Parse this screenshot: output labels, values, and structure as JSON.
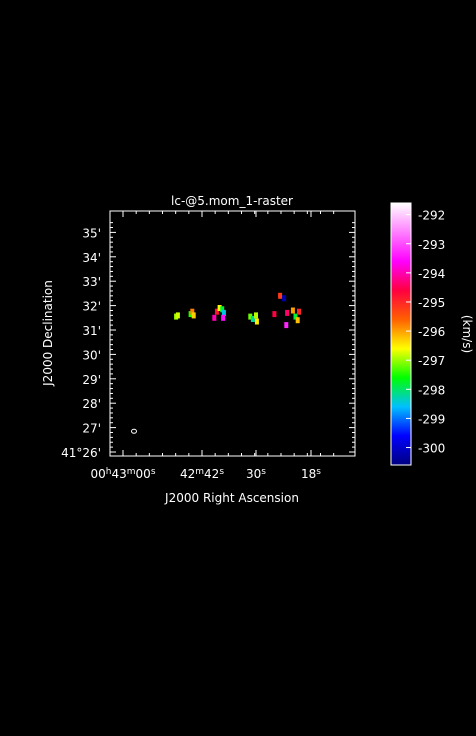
{
  "chart_data": {
    "type": "heatmap",
    "title": "lc-@5.mom_1-raster",
    "xlabel": "J2000 Right Ascension",
    "ylabel": "J2000 Declination",
    "colorbar_label": "(km/s)",
    "x_ticks": [
      {
        "value": "00h43m00s",
        "parts": [
          [
            "00",
            "n"
          ],
          [
            "h",
            "s"
          ],
          [
            "43",
            "n"
          ],
          [
            "m",
            "s"
          ],
          [
            "00",
            "n"
          ],
          [
            "s",
            "s"
          ]
        ]
      },
      {
        "value": "42m42s",
        "parts": [
          [
            "42",
            "n"
          ],
          [
            "m",
            "s"
          ],
          [
            "42",
            "n"
          ],
          [
            "s",
            "s"
          ]
        ]
      },
      {
        "value": "30s",
        "parts": [
          [
            "30",
            "n"
          ],
          [
            "s",
            "s"
          ]
        ]
      },
      {
        "value": "18s",
        "parts": [
          [
            "18",
            "n"
          ],
          [
            "s",
            "s"
          ]
        ]
      }
    ],
    "y_ticks": [
      {
        "value": "35'",
        "dec": 35
      },
      {
        "value": "34'",
        "dec": 34
      },
      {
        "value": "33'",
        "dec": 33
      },
      {
        "value": "32'",
        "dec": 32
      },
      {
        "value": "31'",
        "dec": 31
      },
      {
        "value": "30'",
        "dec": 30
      },
      {
        "value": "29'",
        "dec": 29
      },
      {
        "value": "28'",
        "dec": 28
      },
      {
        "value": "27'",
        "dec": 27
      },
      {
        "value": "41°26'",
        "dec": 26
      }
    ],
    "colorbar_ticks": [
      "-292",
      "-293",
      "-294",
      "-295",
      "-296",
      "-297",
      "-298",
      "-299",
      "-300"
    ],
    "colorbar_range": [
      -300.6,
      -291.6
    ],
    "colormap": [
      "#ffffff",
      "#ff80ff",
      "#ff00ff",
      "#ff0040",
      "#ff6000",
      "#ffff00",
      "#00ff00",
      "#00c0ff",
      "#0000ff",
      "#000080"
    ],
    "beam": {
      "ra_s": 57.5,
      "dec": 26.85
    },
    "emission_clumps": [
      {
        "ra_s": 47.9,
        "dec": 31.55,
        "velocity": -297.0
      },
      {
        "ra_s": 47.5,
        "dec": 31.6,
        "velocity": -296.8
      },
      {
        "ra_s": 44.6,
        "dec": 31.65,
        "velocity": -297.5
      },
      {
        "ra_s": 44.2,
        "dec": 31.75,
        "velocity": -295.8
      },
      {
        "ra_s": 43.9,
        "dec": 31.6,
        "velocity": -296.3
      },
      {
        "ra_s": 39.2,
        "dec": 31.5,
        "velocity": -294.0
      },
      {
        "ra_s": 38.6,
        "dec": 31.75,
        "velocity": -294.8
      },
      {
        "ra_s": 38.0,
        "dec": 31.9,
        "velocity": -296.6
      },
      {
        "ra_s": 37.4,
        "dec": 31.85,
        "velocity": -297.8
      },
      {
        "ra_s": 37.0,
        "dec": 31.7,
        "velocity": -298.5
      },
      {
        "ra_s": 37.2,
        "dec": 31.5,
        "velocity": -293.5
      },
      {
        "ra_s": 31.0,
        "dec": 31.55,
        "velocity": -297.2
      },
      {
        "ra_s": 30.4,
        "dec": 31.45,
        "velocity": -298.2
      },
      {
        "ra_s": 29.7,
        "dec": 31.6,
        "velocity": -296.9
      },
      {
        "ra_s": 29.5,
        "dec": 31.35,
        "velocity": -296.5
      },
      {
        "ra_s": 25.5,
        "dec": 31.65,
        "velocity": -294.6
      },
      {
        "ra_s": 24.2,
        "dec": 32.4,
        "velocity": -295.2
      },
      {
        "ra_s": 23.3,
        "dec": 32.3,
        "velocity": -300.2
      },
      {
        "ra_s": 22.6,
        "dec": 31.7,
        "velocity": -294.4
      },
      {
        "ra_s": 22.8,
        "dec": 31.2,
        "velocity": -293.3
      },
      {
        "ra_s": 21.3,
        "dec": 31.8,
        "velocity": -296.0
      },
      {
        "ra_s": 20.7,
        "dec": 31.55,
        "velocity": -297.8
      },
      {
        "ra_s": 20.2,
        "dec": 31.4,
        "velocity": -296.2
      },
      {
        "ra_s": 19.9,
        "dec": 31.75,
        "velocity": -295.0
      }
    ]
  }
}
